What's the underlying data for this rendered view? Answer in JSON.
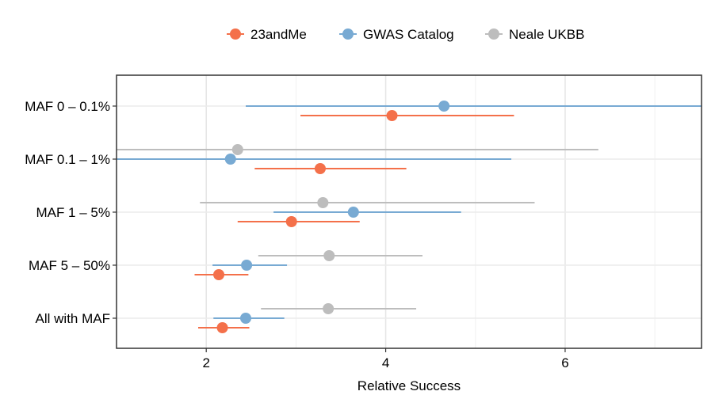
{
  "chart_data": {
    "type": "scatter",
    "subtype": "dot-and-whisker",
    "title": "",
    "xlabel": "Relative Success",
    "ylabel": "",
    "xlim": [
      1,
      7.52
    ],
    "xticks": [
      2,
      4,
      6
    ],
    "grid": true,
    "legend_position": "top",
    "categories": [
      "MAF 0 – 0.1%",
      "MAF 0.1 – 1%",
      "MAF 1 – 5%",
      "MAF 5 – 50%",
      "All with MAF"
    ],
    "series": [
      {
        "name": "23andMe",
        "color": "#f4704a",
        "values": [
          4.07,
          3.27,
          2.95,
          2.14,
          2.18
        ],
        "lower": [
          3.05,
          2.54,
          2.35,
          1.87,
          1.91
        ],
        "upper": [
          5.43,
          4.23,
          3.71,
          2.47,
          2.48
        ]
      },
      {
        "name": "GWAS Catalog",
        "color": "#78aad3",
        "values": [
          4.65,
          2.27,
          3.64,
          2.45,
          2.44
        ],
        "lower": [
          2.44,
          1.0,
          2.75,
          2.07,
          2.08
        ],
        "upper": [
          7.52,
          5.4,
          4.84,
          2.9,
          2.87
        ]
      },
      {
        "name": "Neale UKBB",
        "color": "#bdbdbd",
        "values": [
          null,
          2.35,
          3.3,
          3.37,
          3.36
        ],
        "lower": [
          null,
          1.0,
          1.93,
          2.58,
          2.61
        ],
        "upper": [
          null,
          6.37,
          5.66,
          4.41,
          4.34
        ]
      }
    ]
  }
}
